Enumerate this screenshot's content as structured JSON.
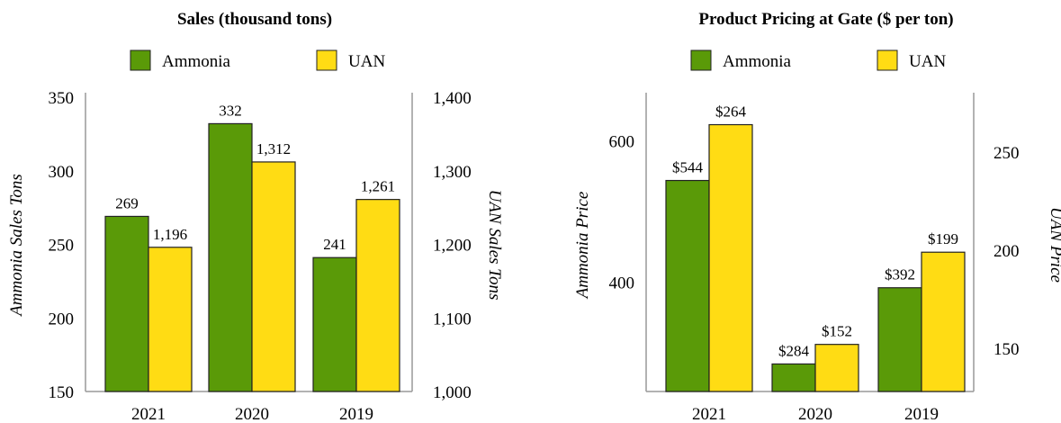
{
  "colors": {
    "ammonia": "#5a9a08",
    "uan": "#ffdc14",
    "bar_stroke": "#222222",
    "axis": "#999999"
  },
  "chart_data": [
    {
      "type": "bar",
      "title": "Sales (thousand tons)",
      "categories": [
        "2021",
        "2020",
        "2019"
      ],
      "series": [
        {
          "name": "Ammonia",
          "axis": "left",
          "values": [
            269,
            332,
            241
          ],
          "labels": [
            "269",
            "332",
            "241"
          ]
        },
        {
          "name": "UAN",
          "axis": "right",
          "values": [
            1196,
            1312,
            1261
          ],
          "labels": [
            "1,196",
            "1,312",
            "1,261"
          ]
        }
      ],
      "ylabel_left": "Ammonia Sales Tons",
      "ylabel_right": "UAN Sales Tons",
      "ylim_left": [
        150,
        350
      ],
      "ylim_right": [
        1000,
        1400
      ],
      "yticks_left": [
        150,
        200,
        250,
        300,
        350
      ],
      "ytick_labels_left": [
        "150",
        "200",
        "250",
        "300",
        "350"
      ],
      "yticks_right": [
        1000,
        1100,
        1200,
        1300,
        1400
      ],
      "ytick_labels_right": [
        "1,000",
        "1,100",
        "1,200",
        "1,300",
        "1,400"
      ],
      "legend": "top-center",
      "grid": false
    },
    {
      "type": "bar",
      "title": "Product Pricing at Gate ($ per ton)",
      "categories": [
        "2021",
        "2020",
        "2019"
      ],
      "series": [
        {
          "name": "Ammonia",
          "axis": "left",
          "values": [
            544,
            284,
            392
          ],
          "labels": [
            "$544",
            "$284",
            "$392"
          ]
        },
        {
          "name": "UAN",
          "axis": "right",
          "values": [
            264,
            152,
            199
          ],
          "labels": [
            "$264",
            "$152",
            "$199"
          ]
        }
      ],
      "ylabel_left": "Ammonia Price",
      "ylabel_right": "UAN Price",
      "ylim_left": [
        245,
        662
      ],
      "ylim_right": [
        128,
        278
      ],
      "yticks_left": [
        400,
        600
      ],
      "ytick_labels_left": [
        "400",
        "600"
      ],
      "yticks_right": [
        150,
        200,
        250
      ],
      "ytick_labels_right": [
        "150",
        "200",
        "250"
      ],
      "legend": "top-center",
      "grid": false
    }
  ]
}
